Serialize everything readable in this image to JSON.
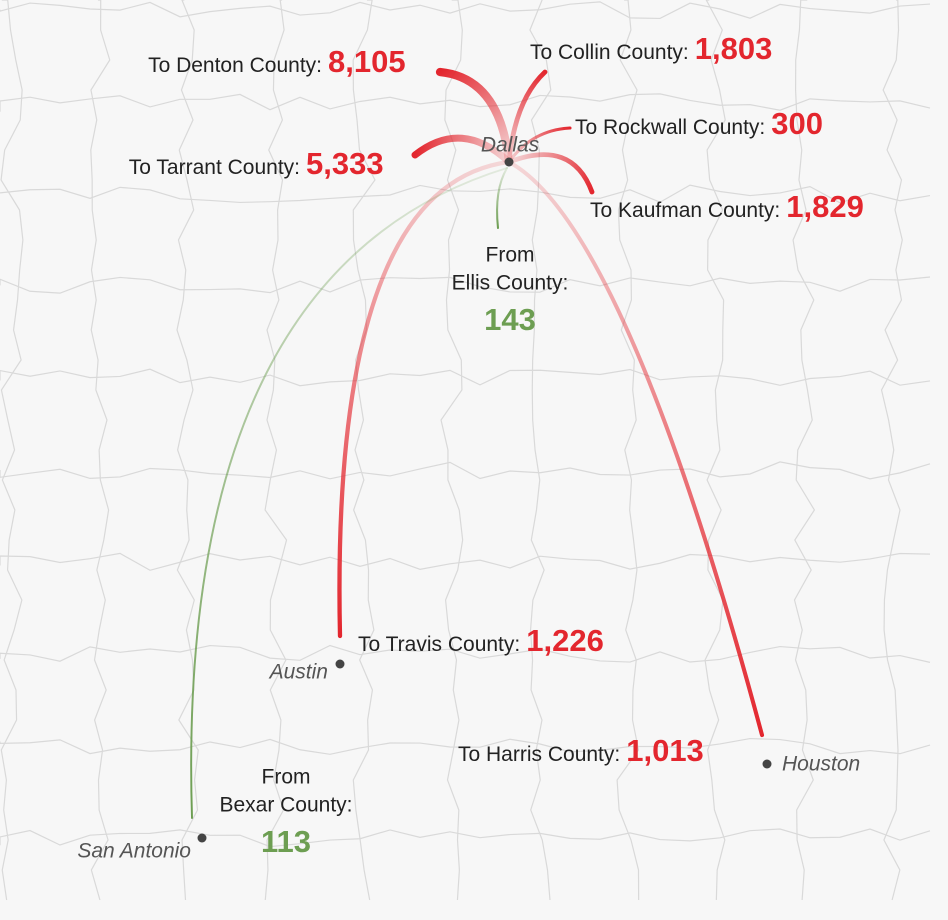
{
  "cities": [
    {
      "name": "Dallas"
    },
    {
      "name": "Austin"
    },
    {
      "name": "Houston"
    },
    {
      "name": "San Antonio"
    }
  ],
  "outflows": [
    {
      "label": "To Denton County:",
      "value": 8105,
      "value_label": "8,105"
    },
    {
      "label": "To Collin County:",
      "value": 1803,
      "value_label": "1,803"
    },
    {
      "label": "To Rockwall County:",
      "value": 300
    },
    {
      "label": "To Tarrant County:",
      "value": 5333,
      "value_label": "5,333"
    },
    {
      "label": "To Kaufman County:",
      "value": 1829,
      "value_label": "1,829"
    },
    {
      "label": "To Travis County:",
      "value": 1226,
      "value_label": "1,226"
    },
    {
      "label": "To Harris County:",
      "value": 1013,
      "value_label": "1,013"
    }
  ],
  "inflows": [
    {
      "label": [
        "From",
        "Ellis County:"
      ],
      "value": 143
    },
    {
      "label": [
        "From",
        "Bexar County:"
      ],
      "value": 113
    }
  ],
  "colors": {
    "outflow": "#e3262e",
    "inflow": "#6d9e52"
  }
}
